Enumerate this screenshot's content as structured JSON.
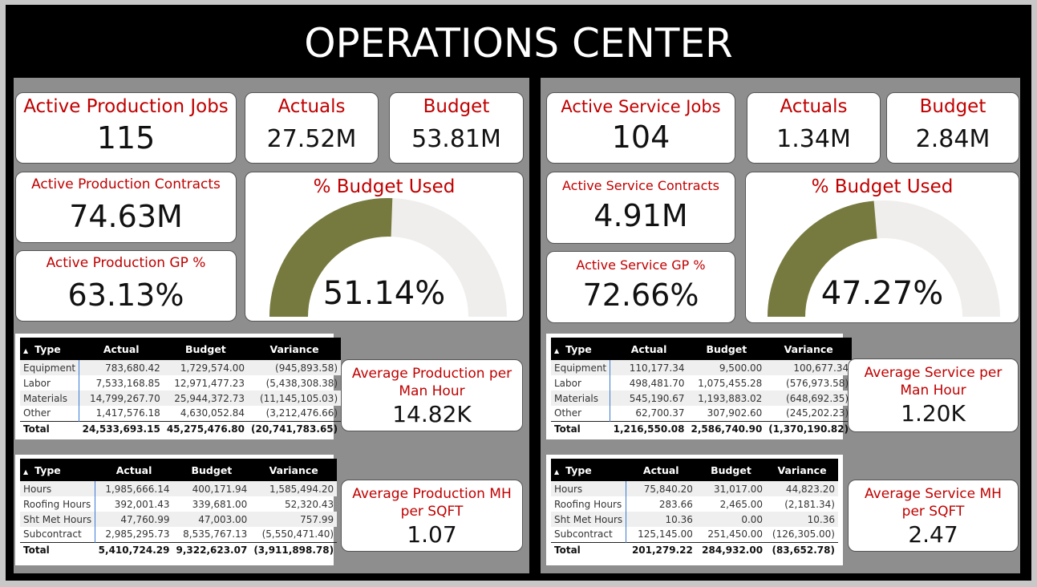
{
  "title": "OPERATIONS CENTER",
  "production": {
    "jobs": {
      "label": "Active Production Jobs",
      "value": "115"
    },
    "actuals": {
      "label": "Actuals",
      "value": "27.52M"
    },
    "budget": {
      "label": "Budget",
      "value": "53.81M"
    },
    "contracts": {
      "label": "Active Production Contracts",
      "value": "74.63M"
    },
    "gp": {
      "label": "Active Production GP %",
      "value": "63.13%"
    },
    "budget_used": {
      "label": "% Budget Used",
      "value": "51.14%",
      "fraction": 0.5114
    },
    "avg_man_hour": {
      "label": "Average Production per Man Hour",
      "value": "14.82K"
    },
    "avg_mh_sqft": {
      "label": "Average Production MH per SQFT",
      "value": "1.07"
    },
    "cost_table": {
      "headers": [
        "Type",
        "Actual",
        "Budget",
        "Variance"
      ],
      "rows": [
        [
          "Equipment",
          "783,680.42",
          "1,729,574.00",
          "(945,893.58)"
        ],
        [
          "Labor",
          "7,533,168.85",
          "12,971,477.23",
          "(5,438,308.38)"
        ],
        [
          "Materials",
          "14,799,267.70",
          "25,944,372.73",
          "(11,145,105.03)"
        ],
        [
          "Other",
          "1,417,576.18",
          "4,630,052.84",
          "(3,212,476.66)"
        ]
      ],
      "total": [
        "Total",
        "24,533,693.15",
        "45,275,476.80",
        "(20,741,783.65)"
      ]
    },
    "hours_table": {
      "headers": [
        "Type",
        "Actual",
        "Budget",
        "Variance"
      ],
      "rows": [
        [
          "Hours",
          "1,985,666.14",
          "400,171.94",
          "1,585,494.20"
        ],
        [
          "Roofing Hours",
          "392,001.43",
          "339,681.00",
          "52,320.43"
        ],
        [
          "Sht Met Hours",
          "47,760.99",
          "47,003.00",
          "757.99"
        ],
        [
          "Subcontract",
          "2,985,295.73",
          "8,535,767.13",
          "(5,550,471.40)"
        ]
      ],
      "total": [
        "Total",
        "5,410,724.29",
        "9,322,623.07",
        "(3,911,898.78)"
      ]
    }
  },
  "service": {
    "jobs": {
      "label": "Active Service Jobs",
      "value": "104"
    },
    "actuals": {
      "label": "Actuals",
      "value": "1.34M"
    },
    "budget": {
      "label": "Budget",
      "value": "2.84M"
    },
    "contracts": {
      "label": "Active Service Contracts",
      "value": "4.91M"
    },
    "gp": {
      "label": "Active Service GP %",
      "value": "72.66%"
    },
    "budget_used": {
      "label": "% Budget Used",
      "value": "47.27%",
      "fraction": 0.4727
    },
    "avg_man_hour": {
      "label": "Average Service per Man Hour",
      "value": "1.20K"
    },
    "avg_mh_sqft": {
      "label": "Average Service MH per SQFT",
      "value": "2.47"
    },
    "cost_table": {
      "headers": [
        "Type",
        "Actual",
        "Budget",
        "Variance"
      ],
      "rows": [
        [
          "Equipment",
          "110,177.34",
          "9,500.00",
          "100,677.34"
        ],
        [
          "Labor",
          "498,481.70",
          "1,075,455.28",
          "(576,973.58)"
        ],
        [
          "Materials",
          "545,190.67",
          "1,193,883.02",
          "(648,692.35)"
        ],
        [
          "Other",
          "62,700.37",
          "307,902.60",
          "(245,202.23)"
        ]
      ],
      "total": [
        "Total",
        "1,216,550.08",
        "2,586,740.90",
        "(1,370,190.82)"
      ]
    },
    "hours_table": {
      "headers": [
        "Type",
        "Actual",
        "Budget",
        "Variance"
      ],
      "rows": [
        [
          "Hours",
          "75,840.20",
          "31,017.00",
          "44,823.20"
        ],
        [
          "Roofing Hours",
          "283.66",
          "2,465.00",
          "(2,181.34)"
        ],
        [
          "Sht Met Hours",
          "10.36",
          "0.00",
          "10.36"
        ],
        [
          "Subcontract",
          "125,145.00",
          "251,450.00",
          "(126,305.00)"
        ]
      ],
      "total": [
        "Total",
        "201,279.22",
        "284,932.00",
        "(83,652.78)"
      ]
    }
  },
  "colors": {
    "gauge_fill": "#777a3f",
    "gauge_track": "#efeeec",
    "label_red": "#c00000"
  }
}
